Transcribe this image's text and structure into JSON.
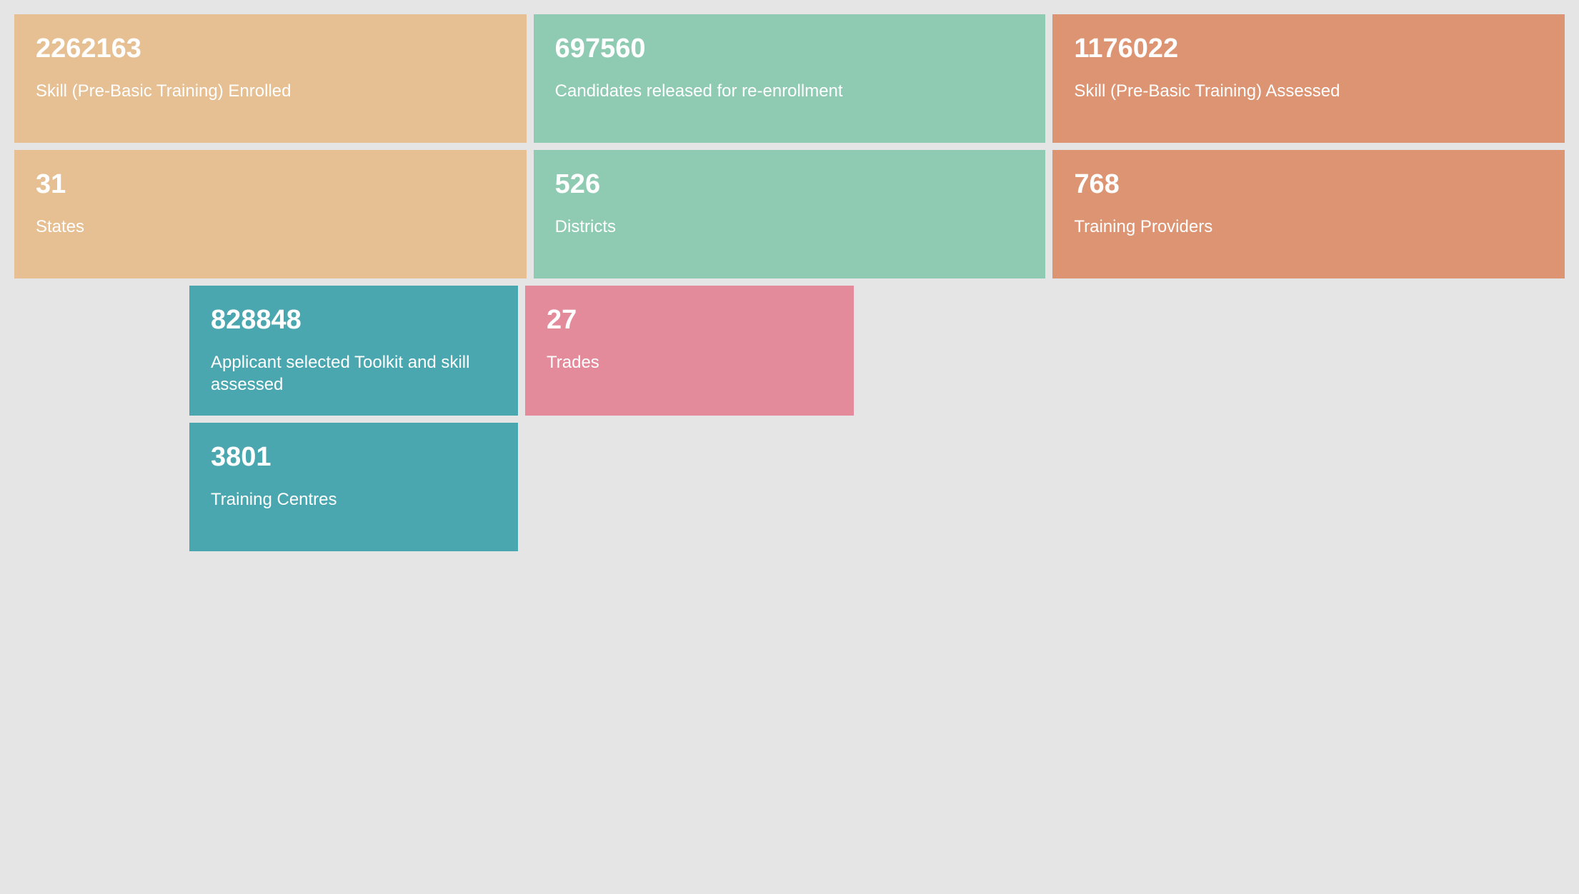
{
  "cards": {
    "enrolled": {
      "value": "2262163",
      "label": "Skill (Pre-Basic Training) Enrolled",
      "color": "#e6bf92"
    },
    "released": {
      "value": "697560",
      "label": "Candidates released for re-enrollment",
      "color": "#8fcbb2"
    },
    "assessed": {
      "value": "1176022",
      "label": "Skill (Pre-Basic Training) Assessed",
      "color": "#dd9473"
    },
    "states": {
      "value": "31",
      "label": "States",
      "color": "#e6bf92"
    },
    "districts": {
      "value": "526",
      "label": "Districts",
      "color": "#8fcbb2"
    },
    "providers": {
      "value": "768",
      "label": "Training Providers",
      "color": "#dd9473"
    },
    "toolkit": {
      "value": "828848",
      "label": "Applicant selected Toolkit and skill assessed",
      "color": "#4aa7b0"
    },
    "trades": {
      "value": "27",
      "label": "Trades",
      "color": "#e38a9b"
    },
    "centres": {
      "value": "3801",
      "label": "Training Centres",
      "color": "#4aa7b0"
    }
  },
  "layout": {
    "background_color": "#e5e5e5",
    "text_color": "#ffffff",
    "value_fontsize": 38,
    "label_fontsize": 24,
    "card_gap": 10,
    "card_padding": 28
  }
}
